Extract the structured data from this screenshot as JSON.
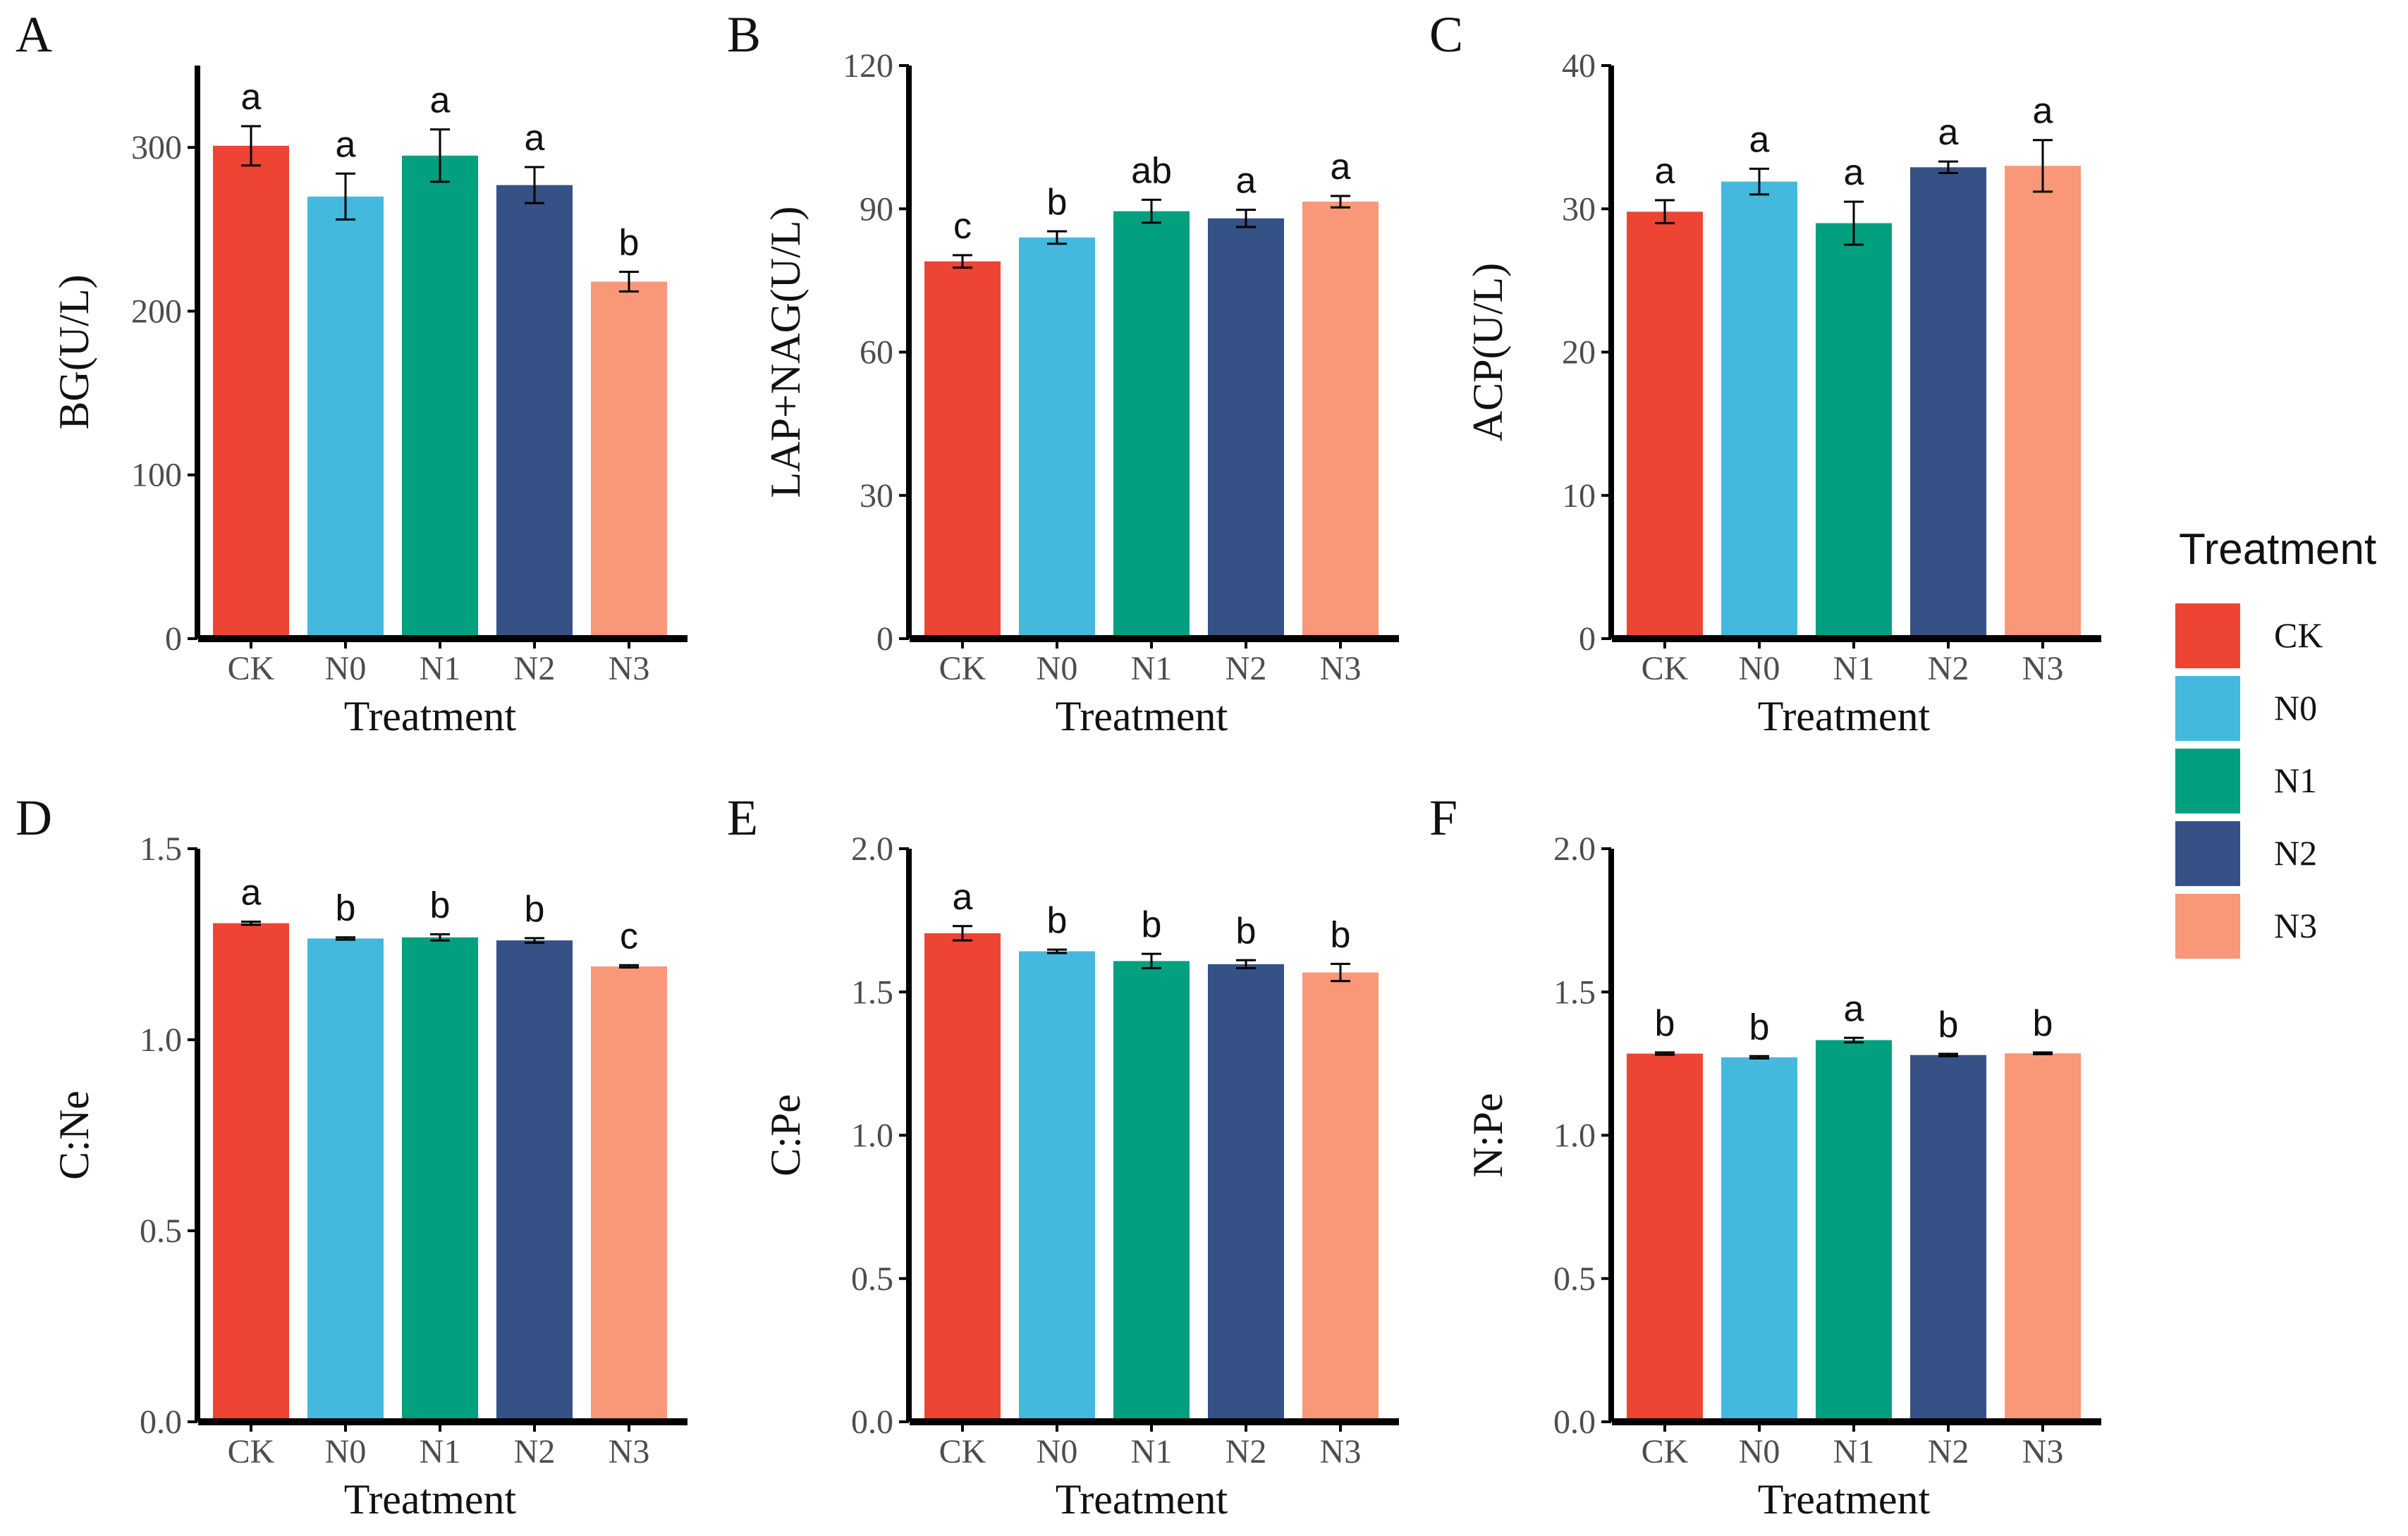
{
  "chart_data": [
    {
      "panel": "A",
      "type": "bar",
      "categories": [
        "CK",
        "N0",
        "N1",
        "N2",
        "N3"
      ],
      "values": [
        301,
        270,
        295,
        277,
        218
      ],
      "errors": [
        12,
        14,
        16,
        11,
        6
      ],
      "letters": [
        "a",
        "a",
        "a",
        "a",
        "b"
      ],
      "xlabel": "Treatment",
      "ylabel": "BG(U/L)",
      "ylim": [
        0,
        350
      ],
      "yticks": [
        0,
        100,
        200,
        300
      ],
      "ytick_labels": [
        "0",
        "100",
        "200",
        "300"
      ]
    },
    {
      "panel": "B",
      "type": "bar",
      "categories": [
        "CK",
        "N0",
        "N1",
        "N2",
        "N3"
      ],
      "values": [
        79,
        84,
        89.5,
        88,
        91.5
      ],
      "errors": [
        1.3,
        1.3,
        2.4,
        1.8,
        1.2
      ],
      "letters": [
        "c",
        "b",
        "ab",
        "a",
        "a"
      ],
      "xlabel": "Treatment",
      "ylabel": "LAP+NAG(U/L)",
      "ylim": [
        0,
        120
      ],
      "yticks": [
        0,
        30,
        60,
        90,
        120
      ],
      "ytick_labels": [
        "0",
        "30",
        "60",
        "90",
        "120"
      ]
    },
    {
      "panel": "C",
      "type": "bar",
      "categories": [
        "CK",
        "N0",
        "N1",
        "N2",
        "N3"
      ],
      "values": [
        29.8,
        31.9,
        29.0,
        32.9,
        33.0
      ],
      "errors": [
        0.8,
        0.9,
        1.5,
        0.4,
        1.8
      ],
      "letters": [
        "a",
        "a",
        "a",
        "a",
        "a"
      ],
      "xlabel": "Treatment",
      "ylabel": "ACP(U/L)",
      "ylim": [
        0,
        40
      ],
      "yticks": [
        0,
        10,
        20,
        30,
        40
      ],
      "ytick_labels": [
        "0",
        "10",
        "20",
        "30",
        "40"
      ]
    },
    {
      "panel": "D",
      "type": "bar",
      "categories": [
        "CK",
        "N0",
        "N1",
        "N2",
        "N3"
      ],
      "values": [
        1.305,
        1.265,
        1.268,
        1.26,
        1.192
      ],
      "errors": [
        0.004,
        0.003,
        0.008,
        0.006,
        0.003
      ],
      "letters": [
        "a",
        "b",
        "b",
        "b",
        "c"
      ],
      "xlabel": "Treatment",
      "ylabel": "C:Ne",
      "ylim": [
        0,
        1.5
      ],
      "yticks": [
        0,
        0.5,
        1.0,
        1.5
      ],
      "ytick_labels": [
        "0.0",
        "0.5",
        "1.0",
        "1.5"
      ]
    },
    {
      "panel": "E",
      "type": "bar",
      "categories": [
        "CK",
        "N0",
        "N1",
        "N2",
        "N3"
      ],
      "values": [
        1.705,
        1.642,
        1.608,
        1.597,
        1.568
      ],
      "errors": [
        0.025,
        0.006,
        0.025,
        0.014,
        0.03
      ],
      "letters": [
        "a",
        "b",
        "b",
        "b",
        "b"
      ],
      "xlabel": "Treatment",
      "ylabel": "C:Pe",
      "ylim": [
        0,
        2.0
      ],
      "yticks": [
        0,
        0.5,
        1.0,
        1.5,
        2.0
      ],
      "ytick_labels": [
        "0.0",
        "0.5",
        "1.0",
        "1.5",
        "2.0"
      ]
    },
    {
      "panel": "F",
      "type": "bar",
      "categories": [
        "CK",
        "N0",
        "N1",
        "N2",
        "N3"
      ],
      "values": [
        1.285,
        1.272,
        1.332,
        1.28,
        1.286
      ],
      "errors": [
        0.004,
        0.004,
        0.008,
        0.004,
        0.003
      ],
      "letters": [
        "b",
        "b",
        "a",
        "b",
        "b"
      ],
      "xlabel": "Treatment",
      "ylabel": "N:Pe",
      "ylim": [
        0,
        2.0
      ],
      "yticks": [
        0,
        0.5,
        1.0,
        1.5,
        2.0
      ],
      "ytick_labels": [
        "0.0",
        "0.5",
        "1.0",
        "1.5",
        "2.0"
      ]
    }
  ],
  "legend": {
    "title": "Treatment",
    "items": [
      {
        "label": "CK",
        "color": "#EE4434"
      },
      {
        "label": "N0",
        "color": "#45B8DD"
      },
      {
        "label": "N1",
        "color": "#02A07F"
      },
      {
        "label": "N2",
        "color": "#355185"
      },
      {
        "label": "N3",
        "color": "#F99879"
      }
    ]
  }
}
